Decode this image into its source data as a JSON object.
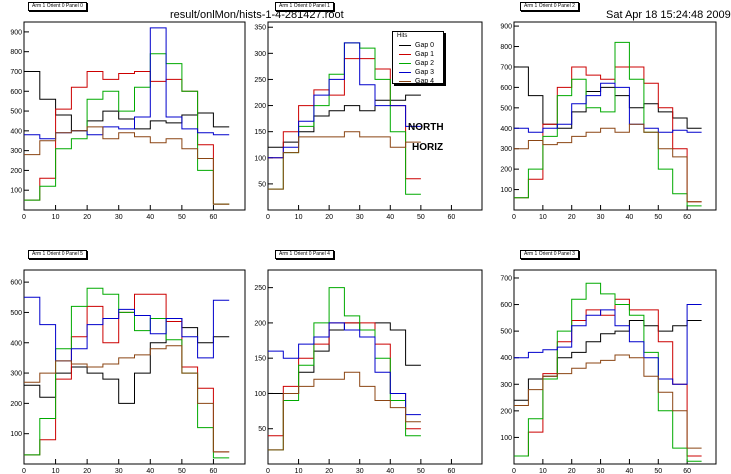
{
  "header": {
    "file": "result/onlMon/hists-1-4-281427.root",
    "datetime": "Sat Apr 18 15:24:48 2009"
  },
  "annotations": {
    "north": "NORTH",
    "horiz": "HORIZ"
  },
  "legend": {
    "title": "Hits",
    "entries": [
      "Gap 0",
      "Gap 1",
      "Gap 2",
      "Gap 3",
      "Gap 4"
    ]
  },
  "colors": {
    "Gap 0": "#000000",
    "Gap 1": "#cc0000",
    "Gap 2": "#00aa00",
    "Gap 3": "#0000cc",
    "Gap 4": "#8b4513"
  },
  "chart_data": [
    {
      "type": "line",
      "title": "Arm 1 Orient 0 Panel 0",
      "xlim": [
        0,
        70
      ],
      "ylim": [
        0,
        950
      ],
      "xticks": [
        0,
        10,
        20,
        30,
        40,
        50,
        60
      ],
      "yticks": [
        100,
        200,
        300,
        400,
        500,
        600,
        700,
        800,
        900
      ],
      "series": [
        {
          "name": "Gap 0",
          "x": [
            0,
            5,
            10,
            15,
            20,
            25,
            30,
            35,
            40,
            45,
            50,
            55,
            60
          ],
          "y": [
            700,
            560,
            480,
            400,
            450,
            500,
            460,
            410,
            450,
            440,
            480,
            490,
            420
          ]
        },
        {
          "name": "Gap 1",
          "x": [
            0,
            5,
            10,
            15,
            20,
            25,
            30,
            35,
            40,
            45,
            50,
            55,
            60
          ],
          "y": [
            50,
            160,
            510,
            620,
            700,
            660,
            690,
            700,
            650,
            660,
            600,
            330,
            30
          ]
        },
        {
          "name": "Gap 2",
          "x": [
            0,
            5,
            10,
            15,
            20,
            25,
            30,
            35,
            40,
            45,
            50,
            55,
            60
          ],
          "y": [
            50,
            120,
            310,
            360,
            560,
            600,
            500,
            620,
            790,
            740,
            600,
            200,
            30
          ]
        },
        {
          "name": "Gap 3",
          "x": [
            0,
            5,
            10,
            15,
            20,
            25,
            30,
            35,
            40,
            45,
            50,
            55,
            60
          ],
          "y": [
            380,
            360,
            390,
            400,
            380,
            420,
            410,
            470,
            920,
            470,
            410,
            390,
            380
          ]
        },
        {
          "name": "Gap 4",
          "x": [
            0,
            5,
            10,
            15,
            20,
            25,
            30,
            35,
            40,
            45,
            50,
            55,
            60
          ],
          "y": [
            280,
            350,
            390,
            400,
            420,
            360,
            390,
            370,
            340,
            360,
            310,
            260,
            30
          ]
        }
      ]
    },
    {
      "type": "line",
      "title": "Arm 1 Orient 0 Panel 1",
      "xlim": [
        0,
        70
      ],
      "ylim": [
        0,
        360
      ],
      "xticks": [
        0,
        10,
        20,
        30,
        40,
        50,
        60
      ],
      "yticks": [
        50,
        100,
        150,
        200,
        250,
        300,
        350
      ],
      "series": [
        {
          "name": "Gap 0",
          "x": [
            0,
            5,
            10,
            15,
            20,
            25,
            30,
            35,
            40,
            45
          ],
          "y": [
            120,
            130,
            150,
            180,
            190,
            200,
            190,
            210,
            210,
            220
          ]
        },
        {
          "name": "Gap 1",
          "x": [
            0,
            5,
            10,
            15,
            20,
            25,
            30,
            35,
            40,
            45
          ],
          "y": [
            100,
            150,
            200,
            230,
            220,
            290,
            290,
            270,
            200,
            60
          ]
        },
        {
          "name": "Gap 2",
          "x": [
            0,
            5,
            10,
            15,
            20,
            25,
            30,
            35,
            40,
            45
          ],
          "y": [
            40,
            110,
            160,
            200,
            260,
            320,
            310,
            250,
            150,
            30
          ]
        },
        {
          "name": "Gap 3",
          "x": [
            0,
            5,
            10,
            15,
            20,
            25,
            30,
            35,
            40,
            45
          ],
          "y": [
            100,
            120,
            170,
            220,
            250,
            320,
            240,
            200,
            200,
            160
          ]
        },
        {
          "name": "Gap 4",
          "x": [
            0,
            5,
            10,
            15,
            20,
            25,
            30,
            35,
            40,
            45
          ],
          "y": [
            40,
            110,
            140,
            140,
            140,
            150,
            140,
            140,
            120,
            130
          ]
        }
      ]
    },
    {
      "type": "line",
      "title": "Arm 1 Orient 0 Panel 2",
      "xlim": [
        0,
        70
      ],
      "ylim": [
        0,
        920
      ],
      "xticks": [
        0,
        10,
        20,
        30,
        40,
        50,
        60
      ],
      "yticks": [
        100,
        200,
        300,
        400,
        500,
        600,
        700,
        800,
        900
      ],
      "series": [
        {
          "name": "Gap 0",
          "x": [
            0,
            5,
            10,
            15,
            20,
            25,
            30,
            35,
            40,
            45,
            50,
            55,
            60
          ],
          "y": [
            700,
            560,
            420,
            400,
            480,
            580,
            600,
            560,
            500,
            520,
            480,
            450,
            400
          ]
        },
        {
          "name": "Gap 1",
          "x": [
            0,
            5,
            10,
            15,
            20,
            25,
            30,
            35,
            40,
            45,
            50,
            55,
            60
          ],
          "y": [
            60,
            150,
            420,
            600,
            700,
            660,
            640,
            700,
            700,
            620,
            500,
            300,
            40
          ]
        },
        {
          "name": "Gap 2",
          "x": [
            0,
            5,
            10,
            15,
            20,
            25,
            30,
            35,
            40,
            45,
            50,
            55,
            60
          ],
          "y": [
            60,
            200,
            360,
            560,
            640,
            500,
            480,
            820,
            640,
            380,
            200,
            80,
            20
          ]
        },
        {
          "name": "Gap 3",
          "x": [
            0,
            5,
            10,
            15,
            20,
            25,
            30,
            35,
            40,
            45,
            50,
            55,
            60
          ],
          "y": [
            400,
            380,
            400,
            420,
            520,
            560,
            620,
            600,
            420,
            400,
            380,
            390,
            380
          ]
        },
        {
          "name": "Gap 4",
          "x": [
            0,
            5,
            10,
            15,
            20,
            25,
            30,
            35,
            40,
            45,
            50,
            55,
            60
          ],
          "y": [
            300,
            340,
            320,
            330,
            360,
            380,
            400,
            380,
            420,
            380,
            300,
            260,
            40
          ]
        }
      ]
    },
    {
      "type": "line",
      "title": "Arm 1 Orient 0 Panel 5",
      "xlim": [
        0,
        70
      ],
      "ylim": [
        0,
        640
      ],
      "xticks": [
        0,
        10,
        20,
        30,
        40,
        50,
        60
      ],
      "yticks": [
        100,
        200,
        300,
        400,
        500,
        600
      ],
      "series": [
        {
          "name": "Gap 0",
          "x": [
            0,
            5,
            10,
            15,
            20,
            25,
            30,
            35,
            40,
            45,
            50,
            55,
            60
          ],
          "y": [
            260,
            220,
            300,
            320,
            300,
            280,
            200,
            300,
            400,
            480,
            450,
            400,
            420
          ]
        },
        {
          "name": "Gap 1",
          "x": [
            0,
            5,
            10,
            15,
            20,
            25,
            30,
            35,
            40,
            45,
            50,
            55,
            60
          ],
          "y": [
            30,
            80,
            280,
            420,
            520,
            400,
            500,
            560,
            560,
            470,
            320,
            250,
            40
          ]
        },
        {
          "name": "Gap 2",
          "x": [
            0,
            5,
            10,
            15,
            20,
            25,
            30,
            35,
            40,
            45,
            50,
            55,
            60
          ],
          "y": [
            30,
            150,
            380,
            520,
            580,
            560,
            500,
            440,
            480,
            410,
            300,
            120,
            20
          ]
        },
        {
          "name": "Gap 3",
          "x": [
            0,
            5,
            10,
            15,
            20,
            25,
            30,
            35,
            40,
            45,
            50,
            55,
            60
          ],
          "y": [
            550,
            460,
            340,
            380,
            460,
            480,
            510,
            490,
            430,
            480,
            420,
            350,
            540
          ]
        },
        {
          "name": "Gap 4",
          "x": [
            0,
            5,
            10,
            15,
            20,
            25,
            30,
            35,
            40,
            45,
            50,
            55,
            60
          ],
          "y": [
            270,
            300,
            340,
            330,
            320,
            330,
            350,
            360,
            380,
            390,
            300,
            200,
            40
          ]
        }
      ]
    },
    {
      "type": "line",
      "title": "Arm 1 Orient 0 Panel 4",
      "xlim": [
        0,
        70
      ],
      "ylim": [
        0,
        275
      ],
      "xticks": [
        0,
        10,
        20,
        30,
        40,
        50,
        60
      ],
      "yticks": [
        50,
        100,
        150,
        200,
        250
      ],
      "series": [
        {
          "name": "Gap 0",
          "x": [
            0,
            5,
            10,
            15,
            20,
            25,
            30,
            35,
            40,
            45
          ],
          "y": [
            100,
            100,
            130,
            160,
            190,
            200,
            190,
            200,
            190,
            140
          ]
        },
        {
          "name": "Gap 1",
          "x": [
            0,
            5,
            10,
            15,
            20,
            25,
            30,
            35,
            40,
            45
          ],
          "y": [
            40,
            110,
            150,
            170,
            200,
            200,
            200,
            170,
            100,
            50
          ]
        },
        {
          "name": "Gap 2",
          "x": [
            0,
            5,
            10,
            15,
            20,
            25,
            30,
            35,
            40,
            45
          ],
          "y": [
            20,
            90,
            140,
            200,
            250,
            210,
            190,
            150,
            90,
            40
          ]
        },
        {
          "name": "Gap 3",
          "x": [
            0,
            5,
            10,
            15,
            20,
            25,
            30,
            35,
            40,
            45
          ],
          "y": [
            160,
            150,
            170,
            180,
            200,
            190,
            180,
            130,
            100,
            70
          ]
        },
        {
          "name": "Gap 4",
          "x": [
            0,
            5,
            10,
            15,
            20,
            25,
            30,
            35,
            40,
            45
          ],
          "y": [
            20,
            100,
            110,
            120,
            120,
            130,
            110,
            90,
            80,
            60
          ]
        }
      ]
    },
    {
      "type": "line",
      "title": "Arm 1 Orient 0 Panel 3",
      "xlim": [
        0,
        70
      ],
      "ylim": [
        0,
        730
      ],
      "xticks": [
        0,
        10,
        20,
        30,
        40,
        50,
        60
      ],
      "yticks": [
        100,
        200,
        300,
        400,
        500,
        600,
        700
      ],
      "series": [
        {
          "name": "Gap 0",
          "x": [
            0,
            5,
            10,
            15,
            20,
            25,
            30,
            35,
            40,
            45,
            50,
            55,
            60
          ],
          "y": [
            240,
            320,
            330,
            400,
            420,
            460,
            490,
            500,
            540,
            520,
            500,
            520,
            540
          ]
        },
        {
          "name": "Gap 1",
          "x": [
            0,
            5,
            10,
            15,
            20,
            25,
            30,
            35,
            40,
            45,
            50,
            55,
            60
          ],
          "y": [
            30,
            120,
            340,
            460,
            540,
            580,
            560,
            620,
            580,
            580,
            460,
            300,
            30
          ]
        },
        {
          "name": "Gap 2",
          "x": [
            0,
            5,
            10,
            15,
            20,
            25,
            30,
            35,
            40,
            45,
            50,
            55,
            60
          ],
          "y": [
            30,
            170,
            320,
            500,
            620,
            680,
            640,
            600,
            560,
            420,
            200,
            60,
            10
          ]
        },
        {
          "name": "Gap 3",
          "x": [
            0,
            5,
            10,
            15,
            20,
            25,
            30,
            35,
            40,
            45,
            50,
            55,
            60
          ],
          "y": [
            400,
            420,
            430,
            440,
            520,
            560,
            580,
            520,
            460,
            400,
            320,
            300,
            600
          ]
        },
        {
          "name": "Gap 4",
          "x": [
            0,
            5,
            10,
            15,
            20,
            25,
            30,
            35,
            40,
            45,
            50,
            55,
            60
          ],
          "y": [
            220,
            280,
            330,
            340,
            360,
            380,
            390,
            410,
            400,
            330,
            270,
            200,
            60
          ]
        }
      ]
    }
  ]
}
